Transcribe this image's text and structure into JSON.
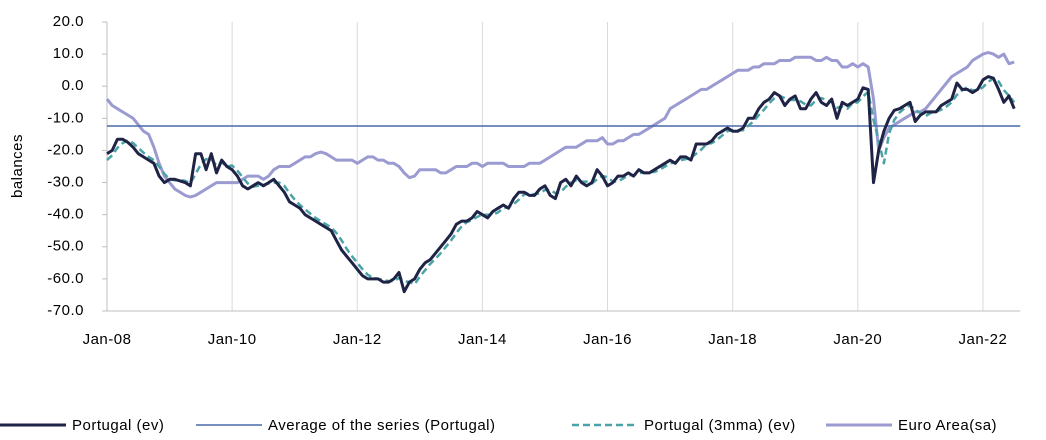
{
  "chart_data": {
    "type": "line",
    "y_label": "balances",
    "categories": [
      "Jan-08",
      null,
      null,
      null,
      null,
      null,
      null,
      null,
      null,
      null,
      null,
      null,
      null,
      null,
      null,
      null,
      null,
      null,
      null,
      null,
      null,
      null,
      null,
      null,
      "Jan-10",
      null,
      null,
      null,
      null,
      null,
      null,
      null,
      null,
      null,
      null,
      null,
      null,
      null,
      null,
      null,
      null,
      null,
      null,
      null,
      null,
      null,
      null,
      null,
      "Jan-12",
      null,
      null,
      null,
      null,
      null,
      null,
      null,
      null,
      null,
      null,
      null,
      null,
      null,
      null,
      null,
      null,
      null,
      null,
      null,
      null,
      null,
      null,
      null,
      "Jan-14",
      null,
      null,
      null,
      null,
      null,
      null,
      null,
      null,
      null,
      null,
      null,
      null,
      null,
      null,
      null,
      null,
      null,
      null,
      null,
      null,
      null,
      null,
      null,
      "Jan-16",
      null,
      null,
      null,
      null,
      null,
      null,
      null,
      null,
      null,
      null,
      null,
      null,
      null,
      null,
      null,
      null,
      null,
      null,
      null,
      null,
      null,
      null,
      null,
      "Jan-18",
      null,
      null,
      null,
      null,
      null,
      null,
      null,
      null,
      null,
      null,
      null,
      null,
      null,
      null,
      null,
      null,
      null,
      null,
      null,
      null,
      null,
      null,
      null,
      "Jan-20",
      null,
      null,
      null,
      null,
      null,
      null,
      null,
      null,
      null,
      null,
      null,
      null,
      null,
      null,
      null,
      null,
      null,
      null,
      null,
      null,
      null,
      null,
      null,
      "Jan-22",
      null,
      null,
      null,
      null,
      null,
      null
    ],
    "series": [
      {
        "name": "Portugal (ev)",
        "color": "#1f2345",
        "style": "solid",
        "width": 3,
        "values": [
          -21,
          -20,
          -16.5,
          -16.5,
          -17.5,
          -19,
          -21,
          -22,
          -23,
          -24,
          -28,
          -30,
          -29,
          -29,
          -29.5,
          -30,
          -31,
          -21,
          -21,
          -26,
          -21,
          -27,
          -23,
          -25,
          -26,
          -28,
          -31,
          -32,
          -31,
          -30,
          -31,
          -30,
          -29,
          -31,
          -33,
          -36,
          -37,
          -38,
          -40,
          -41,
          -42,
          -43,
          -44,
          -45,
          -48,
          -51,
          -53,
          -55,
          -57,
          -59,
          -60,
          -60,
          -60,
          -61,
          -61,
          -60,
          -58,
          -64,
          -61,
          -60,
          -57,
          -55,
          -54,
          -52,
          -50,
          -48,
          -46,
          -43,
          -42,
          -42,
          -41,
          -39,
          -40,
          -41,
          -39,
          -38,
          -37,
          -38,
          -35,
          -33,
          -33,
          -34,
          -34,
          -32,
          -31,
          -34,
          -35,
          -30,
          -29,
          -31,
          -28,
          -30,
          -31,
          -30,
          -26,
          -28,
          -31,
          -30,
          -28,
          -28,
          -27,
          -28,
          -26,
          -27,
          -27,
          -26,
          -25,
          -24,
          -23,
          -24,
          -22,
          -22,
          -23,
          -18,
          -18,
          -18,
          -17,
          -15,
          -14,
          -13,
          -14,
          -14,
          -13,
          -10,
          -10,
          -7,
          -5,
          -4,
          -2,
          -3,
          -6,
          -4,
          -3,
          -7,
          -7,
          -4,
          -2,
          -5,
          -6,
          -4,
          -10,
          -5,
          -6,
          -5,
          -4,
          -0.5,
          -1,
          -30,
          -20,
          -14,
          -10,
          -7.5,
          -7,
          -6,
          -5,
          -11,
          -9,
          -8,
          -8,
          -8,
          -6,
          -5,
          -4,
          1,
          -1,
          -1,
          -2,
          -1,
          2,
          3,
          2.5,
          -1,
          -5,
          -3,
          -7
        ]
      },
      {
        "name": "Portugal (3mma) (ev)",
        "color": "#4aa3a6",
        "style": "dashed",
        "width": 2.5,
        "values": [
          -23,
          -21.5,
          -19.2,
          -17.7,
          -16.8,
          -17.7,
          -19.2,
          -20.7,
          -22,
          -23,
          -25,
          -27.3,
          -29,
          -29.3,
          -29.2,
          -29.5,
          -30.2,
          -27.3,
          -24.3,
          -22.7,
          -22.7,
          -24.7,
          -23.7,
          -25,
          -24.7,
          -26.3,
          -28.3,
          -30.3,
          -31.3,
          -31,
          -30.7,
          -30.3,
          -30,
          -30,
          -31,
          -33.3,
          -35.3,
          -37,
          -38.3,
          -39.7,
          -41,
          -42,
          -43,
          -44,
          -45.7,
          -48,
          -50.7,
          -53,
          -55,
          -57,
          -58.7,
          -59.7,
          -60,
          -60.3,
          -60.7,
          -60.7,
          -59.7,
          -60.7,
          -61,
          -61.7,
          -59.3,
          -57.3,
          -55.3,
          -53.7,
          -52,
          -50,
          -48,
          -45.7,
          -43.7,
          -42.3,
          -41.7,
          -40.7,
          -40,
          -40,
          -40,
          -39.3,
          -38,
          -37.7,
          -36.7,
          -35.3,
          -33.7,
          -33.3,
          -33.7,
          -33.3,
          -32.3,
          -32.3,
          -33.3,
          -33,
          -31.3,
          -30,
          -29.3,
          -29.7,
          -29.7,
          -30.3,
          -29,
          -28,
          -28.3,
          -29.7,
          -29.7,
          -28.7,
          -27.7,
          -27.7,
          -27,
          -27,
          -26.7,
          -26.7,
          -26,
          -25,
          -24,
          -23.7,
          -23,
          -22.7,
          -22.3,
          -21,
          -19.7,
          -18,
          -17.7,
          -16.7,
          -15.3,
          -14,
          -13.7,
          -13.7,
          -13.7,
          -12.3,
          -11,
          -9,
          -7.3,
          -5.3,
          -3.7,
          -3,
          -3.7,
          -4.3,
          -4.3,
          -4.7,
          -5.7,
          -6,
          -4.3,
          -3.7,
          -4.3,
          -5,
          -6.7,
          -6.3,
          -7,
          -5.3,
          -5,
          -3.2,
          -1.8,
          -10.5,
          -17,
          -24,
          -14.7,
          -10.5,
          -8.2,
          -6.8,
          -6,
          -7.3,
          -8.3,
          -9.3,
          -8.3,
          -8,
          -7.3,
          -6.3,
          -5,
          -2.7,
          -1.3,
          -0.3,
          -1.3,
          -1.3,
          -0.3,
          1.3,
          2.5,
          1.5,
          -1.2,
          -3,
          -5
        ]
      },
      {
        "name": "Euro Area(sa)",
        "color": "#9b9bd1",
        "style": "solid",
        "width": 3,
        "values": [
          -4,
          -6,
          -7,
          -8,
          -9,
          -10,
          -12,
          -14,
          -15,
          -19,
          -24,
          -28,
          -30,
          -32,
          -33,
          -34,
          -34.5,
          -34,
          -33,
          -32,
          -31,
          -30,
          -30,
          -30,
          -30,
          -30,
          -29,
          -28,
          -28,
          -28,
          -29,
          -28,
          -26,
          -25,
          -25,
          -25,
          -24,
          -23,
          -22,
          -22,
          -21,
          -20.5,
          -21,
          -22,
          -23,
          -23,
          -23,
          -23,
          -24,
          -23,
          -22,
          -22,
          -23,
          -23,
          -24,
          -24,
          -25,
          -27,
          -28.5,
          -28,
          -26,
          -26,
          -26,
          -26,
          -27,
          -27,
          -26,
          -25,
          -25,
          -25,
          -24,
          -24,
          -25,
          -24,
          -24,
          -24,
          -24,
          -25,
          -25,
          -25,
          -25,
          -24,
          -24,
          -24,
          -23,
          -22,
          -21,
          -20,
          -19,
          -19,
          -19,
          -18,
          -17,
          -17,
          -17,
          -16,
          -18,
          -18,
          -17,
          -17,
          -16,
          -15,
          -15,
          -14,
          -13,
          -12,
          -11,
          -10,
          -7,
          -6,
          -5,
          -4,
          -3,
          -2,
          -1,
          -1,
          0,
          1,
          2,
          3,
          4,
          5,
          5,
          5,
          6,
          6,
          7,
          7,
          7,
          8,
          8,
          8,
          9,
          9,
          9,
          9,
          8,
          8,
          9,
          8,
          8,
          6,
          6,
          7,
          6,
          7,
          6,
          -4,
          -20,
          -16,
          -13,
          -12,
          -11,
          -10,
          -9,
          -8,
          -8,
          -7,
          -5,
          -3,
          -1,
          1,
          3,
          4,
          5,
          6,
          8,
          9,
          10,
          10.5,
          10,
          9,
          10,
          7,
          7.5
        ]
      }
    ],
    "reference_lines": [
      {
        "name": "Average of the series (Portugal)",
        "value": -12.4,
        "color": "#4a6aa8"
      }
    ],
    "ylim": [
      -70,
      20
    ],
    "yticks": [
      {
        "value": 20,
        "label": "20.0"
      },
      {
        "value": 10,
        "label": "10.0"
      },
      {
        "value": 0,
        "label": "0.0"
      },
      {
        "value": -10,
        "label": "-10.0"
      },
      {
        "value": -20,
        "label": "-20.0"
      },
      {
        "value": -30,
        "label": "-30.0"
      },
      {
        "value": -40,
        "label": "-40.0"
      },
      {
        "value": -50,
        "label": "-50.0"
      },
      {
        "value": -60,
        "label": "-60.0"
      },
      {
        "value": -70,
        "label": "-70.0"
      }
    ],
    "grid_x": true
  }
}
